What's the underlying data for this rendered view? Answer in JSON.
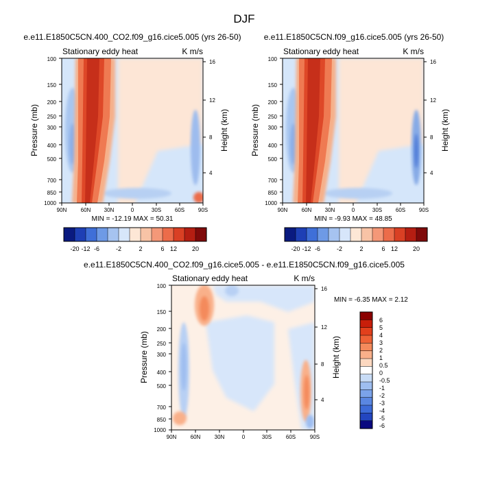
{
  "page": {
    "title": "DJF"
  },
  "units_label": "K m/s",
  "axes": {
    "pressure_label": "Pressure (mb)",
    "height_label": "Height (km)",
    "pressure_ticks": [
      "100",
      "150",
      "200",
      "250",
      "300",
      "400",
      "500",
      "700",
      "850",
      "1000"
    ],
    "height_ticks": [
      "16",
      "12",
      "8",
      "4"
    ],
    "lat_ticks": [
      "90N",
      "60N",
      "30N",
      "0",
      "30S",
      "60S",
      "90S"
    ]
  },
  "chart_data": [
    {
      "type": "heatmap",
      "title": "e.e11.E1850C5CN.400_CO2.f09_g16.cice5.005 (yrs 26-50)",
      "subtitle": "Stationary eddy heat",
      "units": "K m/s",
      "stats_text": "MIN = -12.19  MAX = 50.31",
      "min": -12.19,
      "max": 50.31,
      "xlabels": [
        "90N",
        "60N",
        "30N",
        "0",
        "30S",
        "60S",
        "90S"
      ],
      "ylabel": "Pressure (mb)",
      "ylabel_right": "Height (km)",
      "colorbar_labels": [
        "-20",
        "-12",
        "-6",
        "-2",
        "2",
        "6",
        "12",
        "20"
      ]
    },
    {
      "type": "heatmap",
      "title": "e.e11.E1850C5CN.f09_g16.cice5.005 (yrs 26-50)",
      "subtitle": "Stationary eddy heat",
      "units": "K m/s",
      "stats_text": "MIN = -9.93  MAX = 48.85",
      "min": -9.93,
      "max": 48.85,
      "xlabels": [
        "90N",
        "60N",
        "30N",
        "0",
        "30S",
        "60S",
        "90S"
      ],
      "ylabel": "Pressure (mb)",
      "ylabel_right": "Height (km)",
      "colorbar_labels": [
        "-20",
        "-12",
        "-6",
        "-2",
        "2",
        "6",
        "12",
        "20"
      ]
    },
    {
      "type": "heatmap",
      "title": "e.e11.E1850C5CN.400_CO2.f09_g16.cice5.005 - e.e11.E1850C5CN.f09_g16.cice5.005",
      "subtitle": "Stationary eddy heat",
      "units": "K m/s",
      "stats_text": "MIN = -6.35  MAX =  2.12",
      "min": -6.35,
      "max": 2.12,
      "xlabels": [
        "90N",
        "60N",
        "30N",
        "0",
        "30S",
        "60S",
        "90S"
      ],
      "ylabel": "Pressure (mb)",
      "ylabel_right": "Height (km)",
      "colorbar_labels": [
        "6",
        "5",
        "4",
        "3",
        "2",
        "1",
        "0.5",
        "0",
        "-0.5",
        "-1",
        "-2",
        "-3",
        "-4",
        "-5",
        "-6"
      ]
    }
  ],
  "colors": {
    "colorbar_top": [
      "#0a1a80",
      "#1e3fb5",
      "#3f6fd8",
      "#6e9ae6",
      "#a6c3f0",
      "#d7e6fa",
      "#fde7d6",
      "#f8c3a6",
      "#f49878",
      "#ec6c4a",
      "#d94024",
      "#b51e12",
      "#7f0a0a"
    ],
    "colorbar_diff": [
      "#8b0000",
      "#c81e0a",
      "#e2401c",
      "#ee6236",
      "#f48a5c",
      "#f9b08a",
      "#fcd8c0",
      "#ffffff",
      "#c8dcf6",
      "#9ebef0",
      "#7ba3ea",
      "#5a87e2",
      "#3d6bd8",
      "#2346c0",
      "#0a0a80"
    ],
    "background_field": "#d5e6fa",
    "positive_light": "#fde6d6"
  }
}
